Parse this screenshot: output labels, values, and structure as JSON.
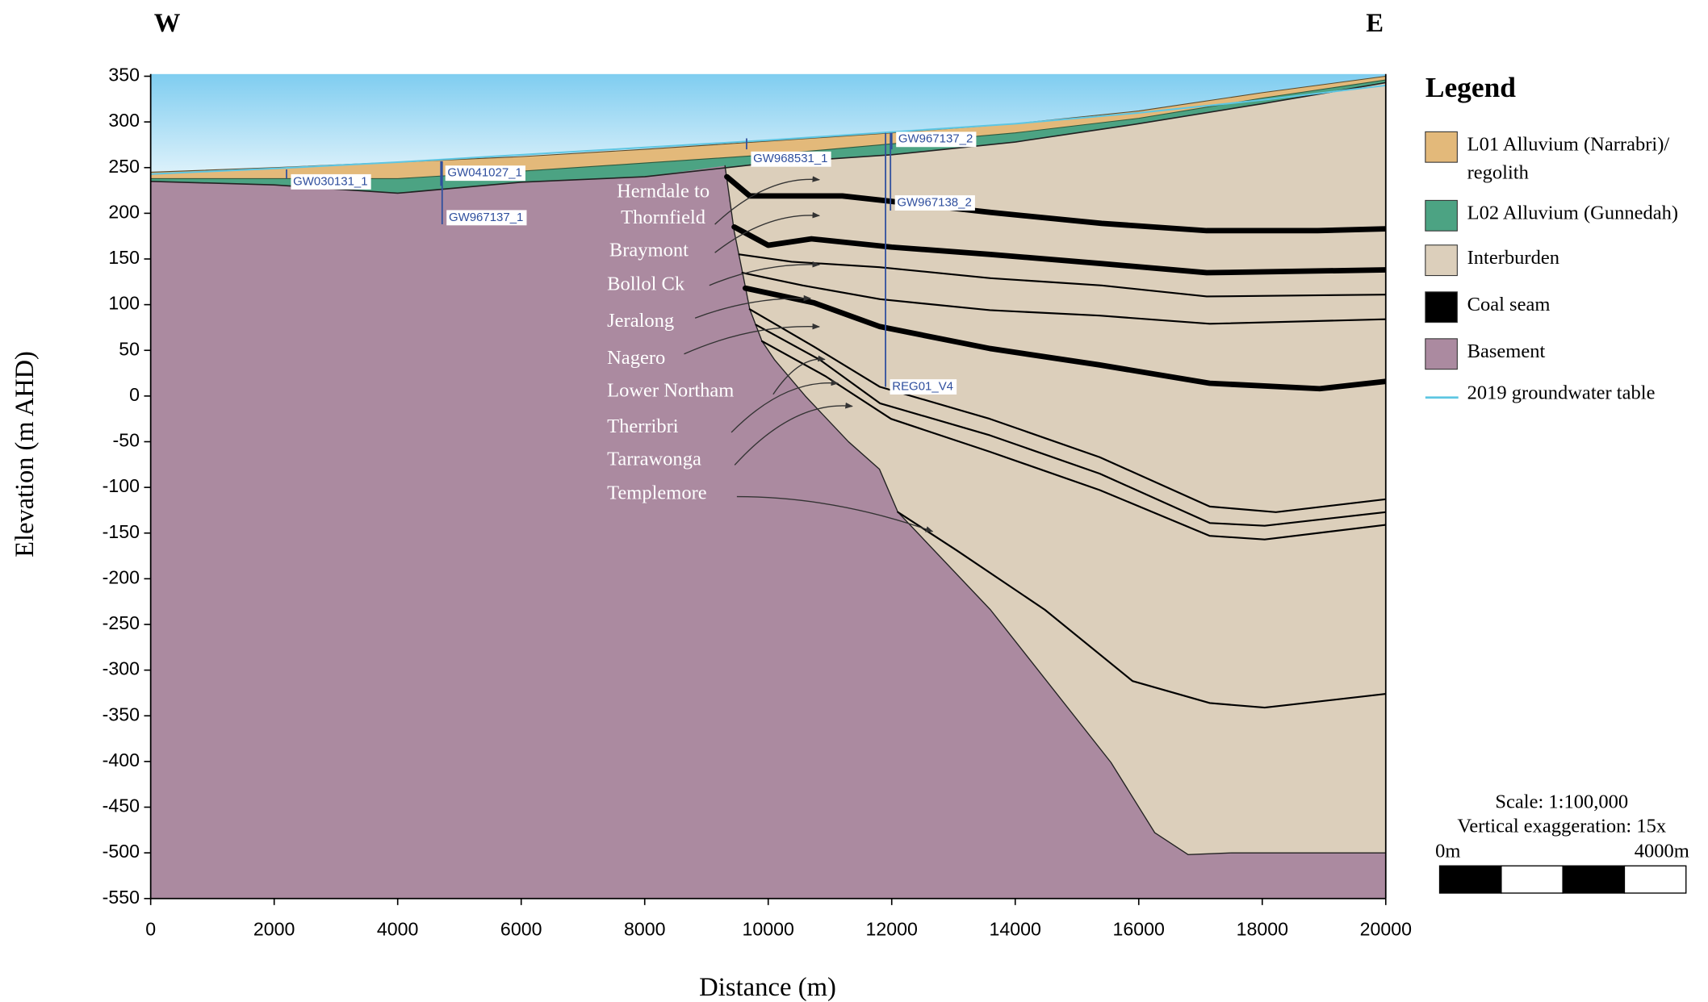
{
  "chart_data": {
    "type": "cross-section",
    "direction_left": "W",
    "direction_right": "E",
    "x_label": "Distance (m)",
    "y_label": "Elevation (m AHD)",
    "xlim": [
      0,
      20000
    ],
    "ylim": [
      -550,
      350
    ],
    "xticks": [
      0,
      2000,
      4000,
      6000,
      8000,
      10000,
      12000,
      14000,
      16000,
      18000,
      20000
    ],
    "yticks": [
      350,
      300,
      250,
      200,
      150,
      100,
      50,
      0,
      -50,
      -100,
      -150,
      -200,
      -250,
      -300,
      -350,
      -400,
      -450,
      -500,
      -550
    ],
    "legend_title": "Legend",
    "legend": [
      {
        "name": [
          "L01 Alluvium (Narrabri)/",
          "regolith"
        ],
        "color": "#e3b97a",
        "kind": "fill"
      },
      {
        "name": [
          "L02 Alluvium (Gunnedah)"
        ],
        "color": "#4ca383",
        "kind": "fill"
      },
      {
        "name": [
          "Interburden"
        ],
        "color": "#dccfbb",
        "kind": "fill"
      },
      {
        "name": [
          "Coal seam"
        ],
        "color": "#000000",
        "kind": "fill"
      },
      {
        "name": [
          "Basement"
        ],
        "color": "#ab8aa0",
        "kind": "fill"
      },
      {
        "name": [
          "2019 groundwater table"
        ],
        "color": "#5ec6e2",
        "kind": "line"
      }
    ],
    "surfaces": {
      "x": [
        0,
        2000,
        4000,
        6000,
        8000,
        10000,
        12000,
        14000,
        16000,
        18000,
        20000
      ],
      "ground": [
        245,
        250,
        256,
        262,
        270,
        279,
        288,
        298,
        312,
        332,
        350
      ],
      "l01_base": [
        238,
        238,
        238,
        246,
        255,
        264,
        276,
        288,
        304,
        326,
        346
      ],
      "alluvium_base": [
        235,
        231,
        222,
        234,
        240,
        255,
        264,
        278,
        298,
        320,
        343
      ],
      "groundwater": [
        243,
        249,
        256,
        264,
        272,
        280,
        289,
        298,
        310,
        324,
        340
      ]
    },
    "basement_top": {
      "x": [
        9300,
        9450,
        9600,
        9700,
        9900,
        10100,
        10600,
        11300,
        11800,
        12100,
        13600,
        15550,
        16260,
        16800,
        17500,
        20000
      ],
      "y": [
        252,
        180,
        130,
        95,
        60,
        40,
        0,
        -50,
        -80,
        -127,
        -234,
        -401,
        -478,
        -502,
        -500,
        -500
      ]
    },
    "seams": [
      {
        "name": [
          "Herndale to",
          "Thornfield"
        ],
        "thick": true,
        "x": [
          9330,
          9700,
          10400,
          11200,
          12000,
          13600,
          15400,
          17100,
          18900,
          20000
        ],
        "y": [
          240,
          219,
          219,
          219,
          213,
          201,
          189,
          181,
          181,
          183
        ]
      },
      {
        "name": [
          "Braymont"
        ],
        "thick": true,
        "x": [
          9450,
          10000,
          10700,
          12000,
          13600,
          15400,
          17100,
          20000
        ],
        "y": [
          185,
          165,
          172,
          163,
          155,
          145,
          135,
          138
        ]
      },
      {
        "name": [
          "Bollol Ck"
        ],
        "thick": false,
        "x": [
          9530,
          10380,
          11800,
          13600,
          15400,
          17100,
          20000
        ],
        "y": [
          155,
          147,
          141,
          129,
          121,
          109,
          111
        ]
      },
      {
        "name": [
          "Jeralong"
        ],
        "thick": false,
        "x": [
          9580,
          10560,
          11810,
          13590,
          15370,
          17150,
          20000
        ],
        "y": [
          135,
          121,
          106,
          94,
          88,
          79,
          84
        ]
      },
      {
        "name": [
          "Nagero"
        ],
        "thick": true,
        "x": [
          9630,
          10740,
          11810,
          13590,
          15370,
          17150,
          18930,
          20000
        ],
        "y": [
          118,
          102,
          76,
          52,
          34,
          14,
          8,
          16
        ]
      },
      {
        "name": [
          "Lower Northam"
        ],
        "thick": false,
        "x": [
          9700,
          10740,
          11810,
          13590,
          15370,
          17150,
          18220,
          20000
        ],
        "y": [
          95,
          54,
          10,
          -25,
          -67,
          -121,
          -127,
          -113
        ]
      },
      {
        "name": [
          "Therribri"
        ],
        "thick": false,
        "x": [
          9800,
          10830,
          11810,
          13590,
          15370,
          17150,
          18040,
          20000
        ],
        "y": [
          78,
          40,
          -8,
          -43,
          -85,
          -139,
          -142,
          -127
        ]
      },
      {
        "name": [
          "Tarrawonga"
        ],
        "thick": false,
        "x": [
          9900,
          10920,
          11990,
          13590,
          15370,
          17150,
          18040,
          20000
        ],
        "y": [
          60,
          22,
          -25,
          -61,
          -103,
          -153,
          -157,
          -141
        ]
      },
      {
        "name": [
          "Templemore"
        ],
        "thick": false,
        "x": [
          12100,
          13055,
          14480,
          15900,
          17150,
          18040,
          20000
        ],
        "y": [
          -127,
          -169,
          -234,
          -312,
          -336,
          -341,
          -326
        ]
      }
    ],
    "boreholes": [
      {
        "name": "GW030131_1",
        "x": 2200,
        "top": 248,
        "bottom": 238
      },
      {
        "name": "GW041027_1",
        "x": 4700,
        "top": 257,
        "bottom": 230
      },
      {
        "name": "GW967137_1",
        "x": 4720,
        "top": 257,
        "bottom": 188
      },
      {
        "name": "GW968531_1",
        "x": 9650,
        "top": 282,
        "bottom": 270
      },
      {
        "name": "GW967137_2",
        "x": 12000,
        "top": 288,
        "bottom": 270
      },
      {
        "name": "GW967138_2",
        "x": 11980,
        "top": 288,
        "bottom": 203
      },
      {
        "name": "REG01_V4",
        "x": 11900,
        "top": 288,
        "bottom": 10
      }
    ],
    "scale_text": "Scale: 1:100,000",
    "exaggeration_text": "Vertical exaggeration: 15x",
    "scale_bar_start": "0m",
    "scale_bar_end": "4000m"
  }
}
